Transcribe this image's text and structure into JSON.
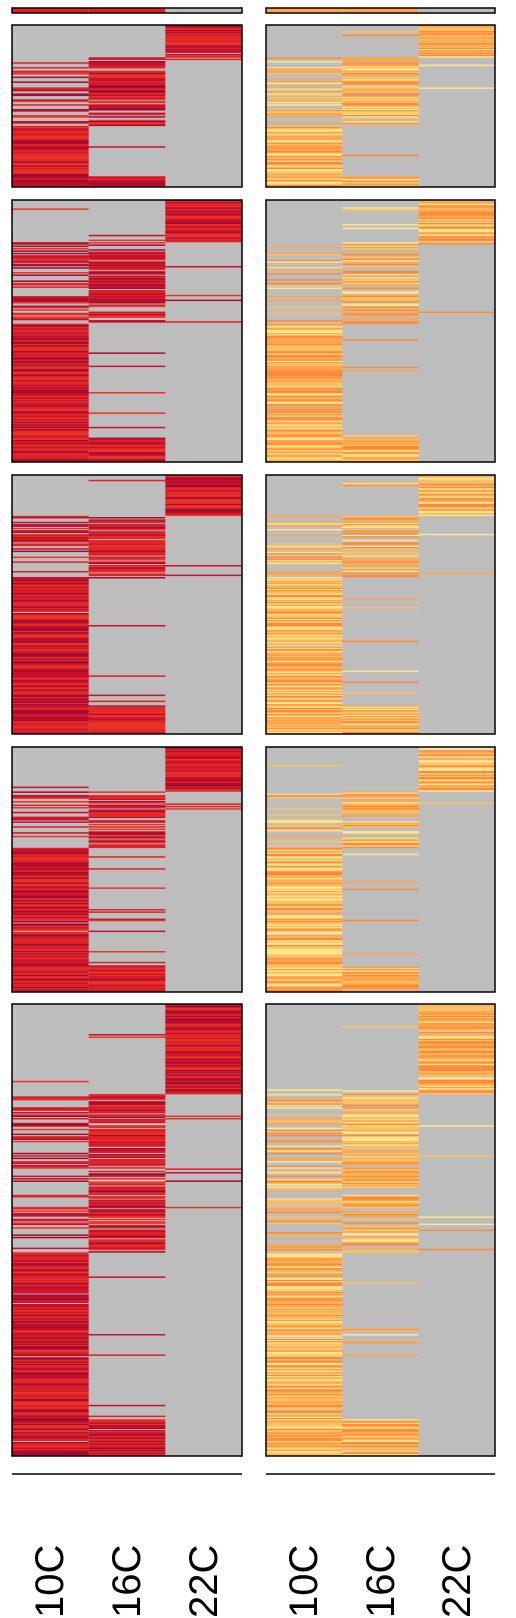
{
  "chart_data": {
    "type": "heatmap",
    "title": "",
    "columns": [
      "10C",
      "16C",
      "22C"
    ],
    "colors": {
      "missing": "#bdbdbd",
      "panel_border": "#000000",
      "left_palette": [
        "#e8322a",
        "#dc2127",
        "#c8102e",
        "#a50b30"
      ],
      "right_palette": [
        "#ffe48f",
        "#ffc060",
        "#ffa54f",
        "#ff8b3a"
      ]
    },
    "panels": [
      {
        "name": "panel-a",
        "block_fractions": [
          0.42,
          0.38,
          0.2
        ],
        "left_present": [
          [
            0.05,
            0.8,
            0.1
          ],
          [
            0.1,
            0.95,
            0.05
          ],
          [
            0.99,
            0.99,
            0.0
          ]
        ],
        "right_present": [
          [
            0.05,
            0.8,
            0.1
          ],
          [
            0.1,
            0.95,
            0.05
          ],
          [
            0.99,
            0.99,
            0.0
          ]
        ]
      },
      {
        "name": "panel-b",
        "block_fractions": [
          0.31,
          0.53,
          0.16
        ],
        "left_present": [
          [
            0.05,
            0.75,
            0.1
          ],
          [
            0.25,
            0.9,
            0.05
          ],
          [
            0.99,
            0.98,
            0.0
          ]
        ],
        "right_present": [
          [
            0.05,
            0.7,
            0.1
          ],
          [
            0.2,
            0.85,
            0.05
          ],
          [
            0.99,
            0.98,
            0.0
          ]
        ]
      },
      {
        "name": "panel-c",
        "block_fractions": [
          0.24,
          0.6,
          0.16
        ],
        "left_present": [
          [
            0.05,
            0.8,
            0.1
          ],
          [
            0.2,
            0.93,
            0.05
          ],
          [
            0.99,
            0.98,
            0.0
          ]
        ],
        "right_present": [
          [
            0.05,
            0.75,
            0.1
          ],
          [
            0.2,
            0.88,
            0.05
          ],
          [
            0.99,
            0.98,
            0.0
          ]
        ]
      },
      {
        "name": "panel-d",
        "block_fractions": [
          0.23,
          0.59,
          0.18
        ],
        "left_present": [
          [
            0.05,
            0.75,
            0.1
          ],
          [
            0.2,
            0.92,
            0.05
          ],
          [
            0.99,
            0.98,
            0.0
          ]
        ],
        "right_present": [
          [
            0.05,
            0.7,
            0.1
          ],
          [
            0.2,
            0.86,
            0.05
          ],
          [
            0.99,
            0.98,
            0.0
          ]
        ]
      },
      {
        "name": "panel-e",
        "block_fractions": [
          0.35,
          0.45,
          0.2
        ],
        "left_present": [
          [
            0.05,
            0.8,
            0.1
          ],
          [
            0.25,
            0.9,
            0.05
          ],
          [
            0.99,
            0.98,
            0.0
          ]
        ],
        "right_present": [
          [
            0.05,
            0.75,
            0.1
          ],
          [
            0.25,
            0.86,
            0.05
          ],
          [
            0.99,
            0.98,
            0.0
          ]
        ]
      }
    ]
  }
}
